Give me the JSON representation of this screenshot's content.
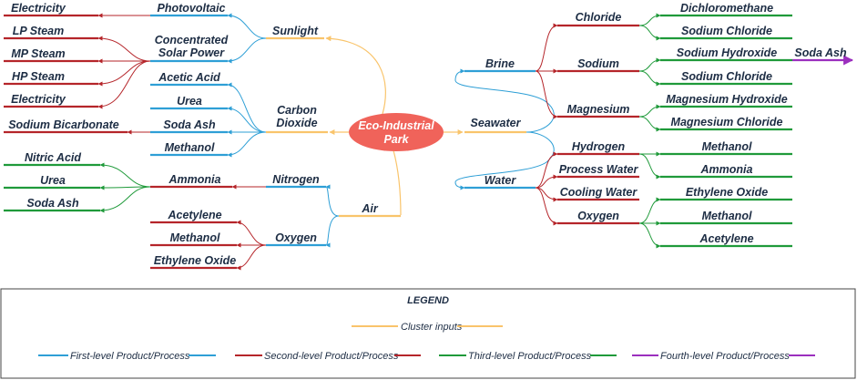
{
  "colors": {
    "cluster": "#f9c46b",
    "first": "#2e9fd6",
    "second": "#b5252a",
    "third": "#1f9a3a",
    "fourth": "#9b2fbe",
    "hub": "#f0635a",
    "text": "#1d2d44"
  },
  "hub": {
    "line1": "Eco-Industrial",
    "line2": "Park"
  },
  "clusters": {
    "sunlight": "Sunlight",
    "co2_line1": "Carbon",
    "co2_line2": "Dioxide",
    "air": "Air",
    "seawater": "Seawater"
  },
  "first_level": {
    "photovoltaic": "Photovoltaic",
    "csp_line1": "Concentrated",
    "csp_line2": "Solar Power",
    "acetic_acid": "Acetic Acid",
    "urea": "Urea",
    "soda_ash": "Soda Ash",
    "methanol": "Methanol",
    "nitrogen": "Nitrogen",
    "oxygen": "Oxygen",
    "brine": "Brine",
    "water": "Water"
  },
  "second_level": {
    "electricity_pv": "Electricity",
    "lp_steam": "LP Steam",
    "mp_steam": "MP Steam",
    "hp_steam": "HP Steam",
    "electricity_csp": "Electricity",
    "sodium_bicarbonate": "Sodium Bicarbonate",
    "ammonia": "Ammonia",
    "acetylene": "Acetylene",
    "methanol": "Methanol",
    "ethylene_oxide": "Ethylene Oxide",
    "chloride": "Chloride",
    "sodium": "Sodium",
    "magnesium": "Magnesium",
    "hydrogen": "Hydrogen",
    "process_water": "Process Water",
    "cooling_water": "Cooling Water",
    "oxygen": "Oxygen"
  },
  "third_level": {
    "nitric_acid": "Nitric Acid",
    "urea": "Urea",
    "soda_ash": "Soda Ash",
    "dichloromethane": "Dichloromethane",
    "sodium_chloride_1": "Sodium Chloride",
    "sodium_hydroxide": "Sodium Hydroxide",
    "sodium_chloride_2": "Sodium Chloride",
    "magnesium_hydroxide": "Magnesium Hydroxide",
    "magnesium_chloride": "Magnesium Chloride",
    "methanol_h": "Methanol",
    "ammonia": "Ammonia",
    "ethylene_oxide": "Ethylene Oxide",
    "methanol_o": "Methanol",
    "acetylene": "Acetylene"
  },
  "fourth_level": {
    "soda_ash": "Soda Ash"
  },
  "legend": {
    "title": "LEGEND",
    "cluster": "Cluster inputs",
    "first": "First-level Product/Process",
    "second": "Second-level Product/Process",
    "third": "Third-level Product/Process",
    "fourth": "Fourth-level Product/Process"
  }
}
